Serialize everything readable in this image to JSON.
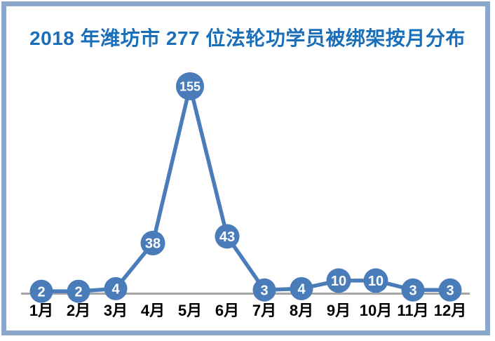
{
  "chart_data": {
    "type": "line",
    "title": "2018 年潍坊市 277 位法轮功学员被绑架按月分布",
    "categories": [
      "1月",
      "2月",
      "3月",
      "4月",
      "5月",
      "6月",
      "7月",
      "8月",
      "9月",
      "10月",
      "11月",
      "12月"
    ],
    "values": [
      2,
      2,
      4,
      38,
      155,
      43,
      3,
      4,
      10,
      10,
      3,
      3
    ],
    "point_labels": [
      "2",
      "2",
      "4",
      "38",
      "155",
      "43",
      "3",
      "4",
      "10",
      "10",
      "3",
      "3"
    ],
    "xlabel": "",
    "ylabel": "",
    "ylim": [
      0,
      160
    ],
    "grid": false,
    "legend_position": "none",
    "annotations": "每个数据点上标注数值",
    "colors": {
      "line": "#4A7CBA",
      "marker_fill": "#4A7CBA",
      "marker_label": "#FFFFFF",
      "title": "#1B6FB8",
      "axis_line": "#A6A6A6",
      "category_label": "#000000",
      "frame_border": "#8BA7CB",
      "background": "#FFFFFF"
    }
  }
}
